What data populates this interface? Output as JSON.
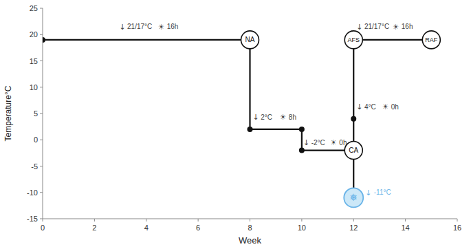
{
  "chart_data": {
    "type": "line",
    "xlabel": "Week",
    "ylabel": "Temperature°C",
    "xlim": [
      0,
      16
    ],
    "ylim": [
      -15,
      25
    ],
    "xticks": [
      0,
      2,
      4,
      6,
      8,
      10,
      12,
      14,
      16
    ],
    "yticks": [
      -15,
      -10,
      -5,
      0,
      5,
      10,
      15,
      20,
      25
    ],
    "color": "#111111",
    "segments": [
      {
        "x": [
          0,
          8
        ],
        "y": [
          19,
          19
        ]
      },
      {
        "x": [
          8,
          8
        ],
        "y": [
          19,
          2
        ]
      },
      {
        "x": [
          8,
          10
        ],
        "y": [
          2,
          2
        ]
      },
      {
        "x": [
          10,
          10
        ],
        "y": [
          2,
          -2
        ]
      },
      {
        "x": [
          10,
          12
        ],
        "y": [
          -2,
          -2
        ]
      },
      {
        "x": [
          12,
          12
        ],
        "y": [
          -2,
          -11
        ]
      },
      {
        "x": [
          12,
          12
        ],
        "y": [
          -2,
          4
        ]
      },
      {
        "x": [
          12,
          12
        ],
        "y": [
          4,
          19
        ]
      },
      {
        "x": [
          12,
          15
        ],
        "y": [
          19,
          19
        ]
      }
    ],
    "dots": [
      {
        "x": 0,
        "y": 19
      },
      {
        "x": 8,
        "y": 2
      },
      {
        "x": 10,
        "y": 2
      },
      {
        "x": 10,
        "y": -2
      },
      {
        "x": 12,
        "y": 4
      }
    ],
    "labeled_circles": [
      {
        "x": 8,
        "y": 19,
        "label": "NA"
      },
      {
        "x": 12,
        "y": -2,
        "label": "CA"
      },
      {
        "x": 12,
        "y": 19,
        "label": "AFS"
      },
      {
        "x": 15,
        "y": 19,
        "label": "RAF"
      }
    ],
    "snowflake": {
      "x": 12,
      "y": -11,
      "label": "❅",
      "color": "#6ab4e8"
    },
    "temp_icon": "↓",
    "light_icon": "☀",
    "annotations": [
      {
        "x": 3.0,
        "y": 21.5,
        "temp": "21/17°C",
        "light_x": 4.45,
        "light": "16h",
        "color": "#444444"
      },
      {
        "x": 8.15,
        "y": 4.3,
        "temp": "2°C",
        "light_x": 9.15,
        "light": "8h",
        "color": "#444444"
      },
      {
        "x": 10.1,
        "y": -0.5,
        "temp": "-2°C",
        "light_x": 11.1,
        "light": "0h",
        "color": "#444444"
      },
      {
        "x": 12.15,
        "y": 6.3,
        "temp": "4°C",
        "light_x": 13.1,
        "light": "0h",
        "color": "#444444"
      },
      {
        "x": 12.15,
        "y": 21.5,
        "temp": "21/17°C",
        "light_x": 13.5,
        "light": "16h",
        "color": "#444444"
      }
    ],
    "snow_temp": {
      "x": 12.65,
      "y": -10.0,
      "temp": "-11°C",
      "color": "#6ab4e8"
    }
  }
}
